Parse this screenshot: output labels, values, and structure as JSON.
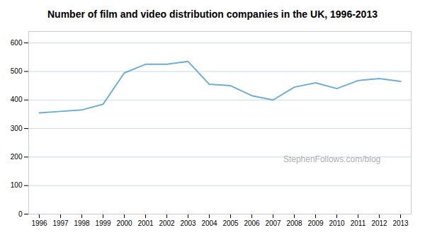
{
  "chart_data": {
    "type": "line",
    "title": "Number of film and video distribution companies in the UK, 1996-2013",
    "x": [
      1996,
      1997,
      1998,
      1999,
      2000,
      2001,
      2002,
      2003,
      2004,
      2005,
      2006,
      2007,
      2008,
      2009,
      2010,
      2011,
      2012,
      2013
    ],
    "values": [
      355,
      360,
      365,
      385,
      495,
      525,
      525,
      535,
      455,
      450,
      415,
      400,
      445,
      460,
      440,
      468,
      475,
      465
    ],
    "color": "#6baed6",
    "xlim": [
      1995.5,
      2013.5
    ],
    "xticks": [
      1996,
      1997,
      1998,
      1999,
      2000,
      2001,
      2002,
      2003,
      2004,
      2005,
      2006,
      2007,
      2008,
      2009,
      2010,
      2011,
      2012,
      2013
    ],
    "ylim": [
      0,
      640
    ],
    "yticks": [
      0,
      100,
      200,
      300,
      400,
      500,
      600
    ],
    "grid": true,
    "annotations": [
      "StephenFollows.com/blog"
    ]
  }
}
